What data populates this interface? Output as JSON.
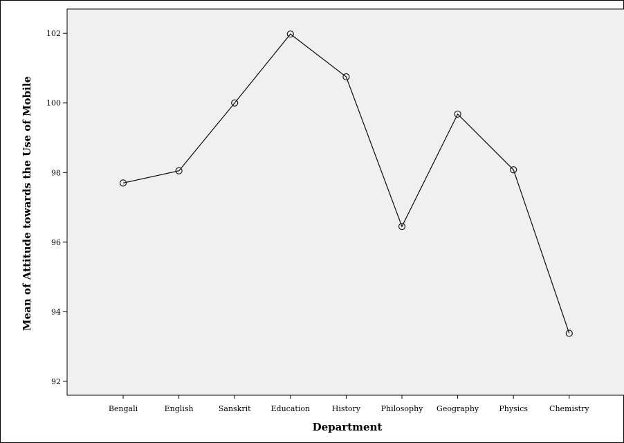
{
  "chart_data": {
    "type": "line",
    "xlabel": "Department",
    "ylabel": "Mean of Attitude towards the Use of Mobile",
    "categories": [
      "Bengali",
      "English",
      "Sanskrit",
      "Education",
      "History",
      "Philosophy",
      "Geography",
      "Physics",
      "Chemistry"
    ],
    "series": [
      {
        "values": [
          97.7,
          98.05,
          100.0,
          101.98,
          100.75,
          96.45,
          99.68,
          98.08,
          93.38
        ]
      }
    ],
    "ylim": [
      91.6,
      102.7
    ],
    "yticks": [
      92,
      94,
      96,
      98,
      100,
      102
    ],
    "grid": false,
    "marker": "circle",
    "colors": {
      "plot_background": "#f0f0f0",
      "line": "#1a1a1a"
    }
  }
}
